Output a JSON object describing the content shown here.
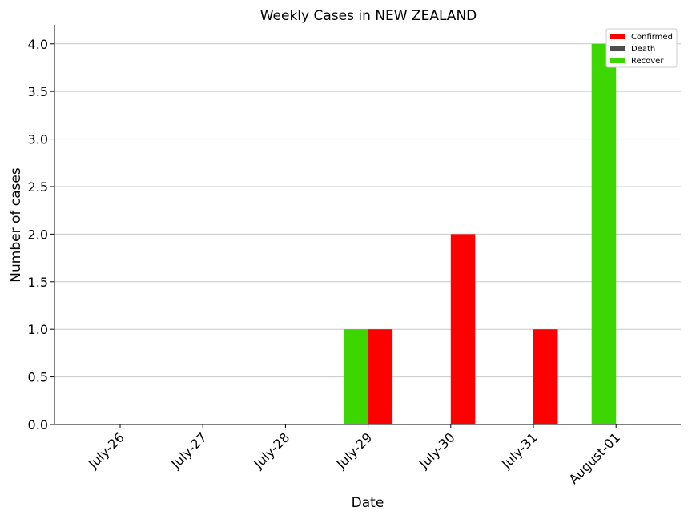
{
  "chart_data": {
    "type": "bar",
    "title": "Weekly Cases in NEW ZEALAND",
    "xlabel": "Date",
    "ylabel": "Number of cases",
    "categories": [
      "July-26",
      "July-27",
      "July-28",
      "July-29",
      "July-30",
      "July-31",
      "August-01"
    ],
    "series": [
      {
        "name": "Confirmed",
        "color": "#ff0000",
        "values": [
          0,
          0,
          0,
          1,
          2,
          1,
          0
        ]
      },
      {
        "name": "Death",
        "color": "#4d4d4d",
        "values": [
          0,
          0,
          0,
          0,
          0,
          0,
          0
        ]
      },
      {
        "name": "Recover",
        "color": "#3dd600",
        "values": [
          0,
          0,
          0,
          1,
          0,
          0,
          4
        ]
      }
    ],
    "ylim": [
      0,
      4.2
    ],
    "yticks": [
      "0.0",
      "0.5",
      "1.0",
      "1.5",
      "2.0",
      "2.5",
      "3.0",
      "3.5",
      "4.0"
    ],
    "grid": "horizontal",
    "legend_position": "top-right"
  }
}
